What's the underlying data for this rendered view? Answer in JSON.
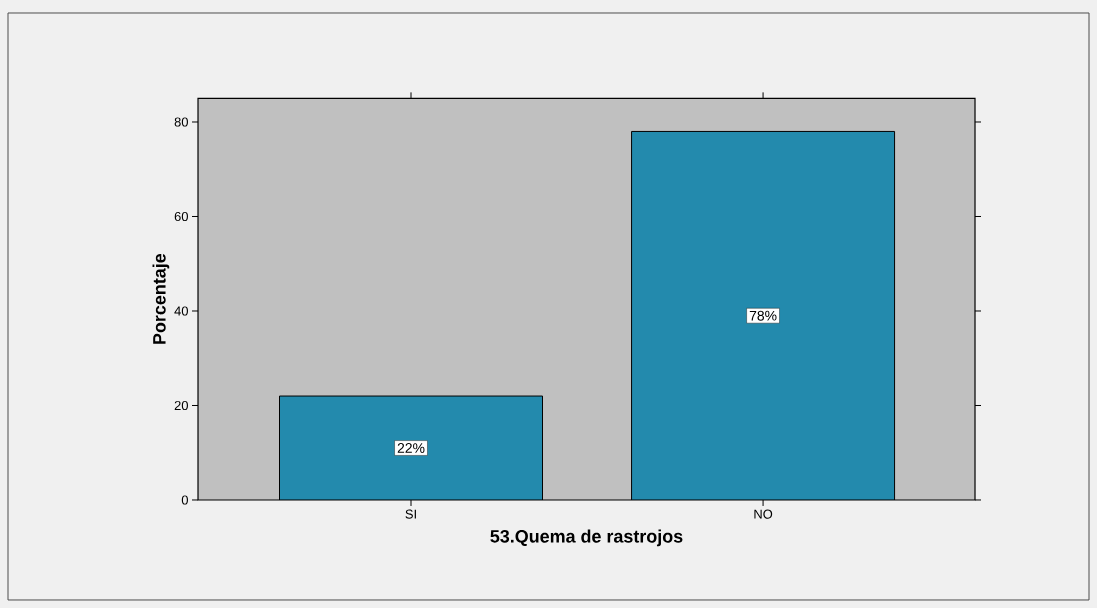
{
  "chart_data": {
    "type": "bar",
    "xlabel": "53.Quema de rastrojos",
    "ylabel": "Porcentaje",
    "categories": [
      "SI",
      "NO"
    ],
    "values": [
      22,
      78
    ],
    "value_labels": [
      "22%",
      "78%"
    ],
    "color": "#238aad",
    "ylim": [
      0,
      85
    ],
    "yticks": [
      0,
      20,
      40,
      60,
      80
    ]
  }
}
